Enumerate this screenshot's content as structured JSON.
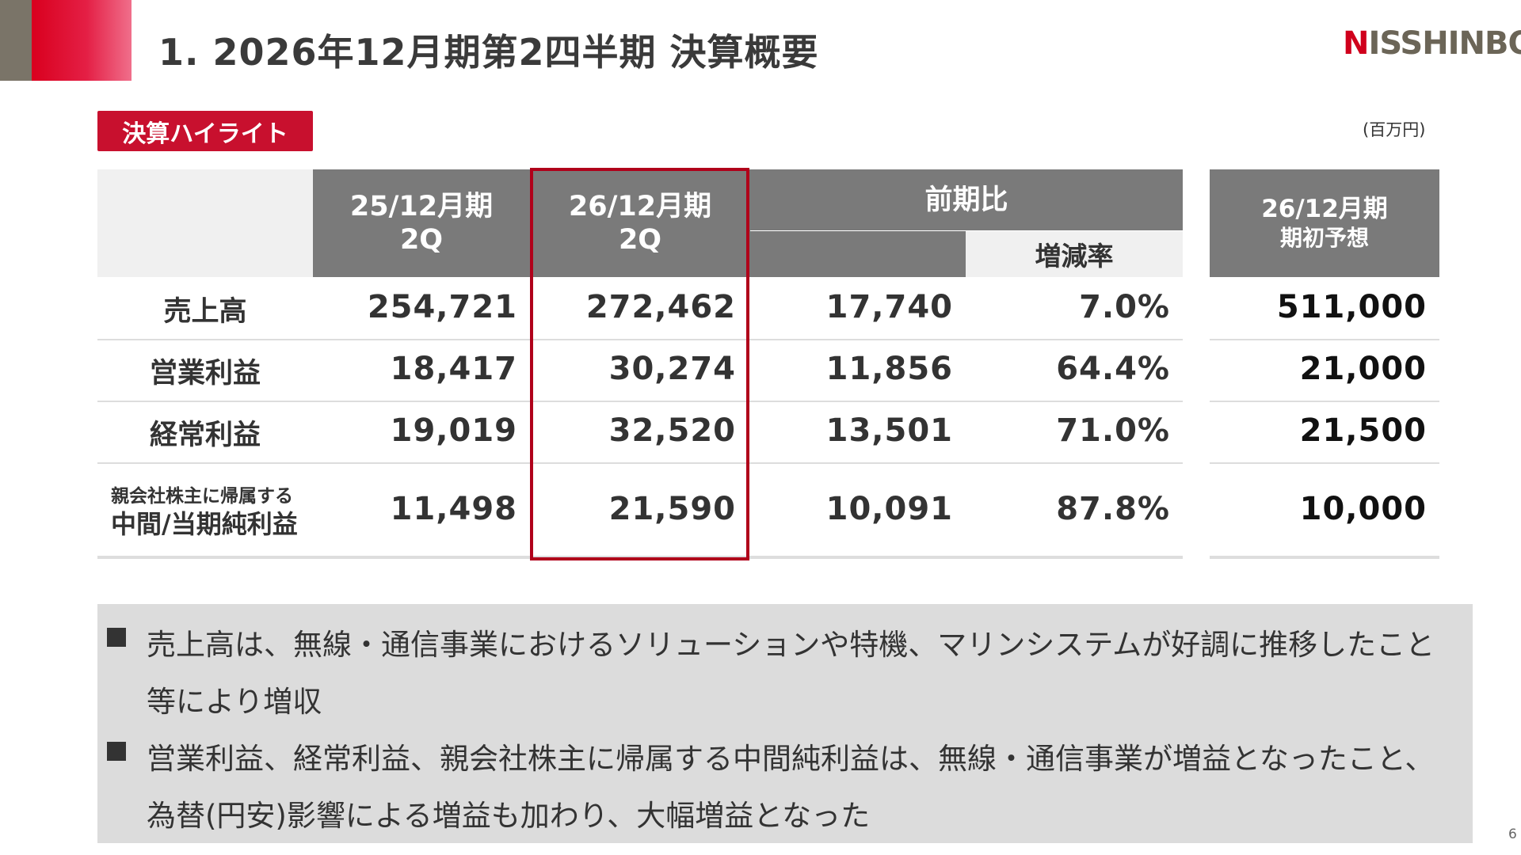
{
  "header": {
    "title": "1. 2026年12月期第2四半期 決算概要",
    "logo_text": "NISSHINBO",
    "logo_first_letter": "N",
    "logo_rest": "ISSHINBO"
  },
  "badge": "決算ハイライト",
  "unit": "(百万円)",
  "table": {
    "columns": {
      "prev": {
        "line1": "25/12月期",
        "line2": "2Q"
      },
      "curr": {
        "line1": "26/12月期",
        "line2": "2Q"
      },
      "yoy": {
        "label": "前期比",
        "rate": "増減率"
      },
      "forecast": {
        "line1": "26/12月期",
        "line2": "期初予想"
      }
    },
    "rows": [
      {
        "label": "売上高",
        "prev": "254,721",
        "curr": "272,462",
        "diff": "17,740",
        "rate": "7.0%",
        "forecast": "511,000"
      },
      {
        "label": "営業利益",
        "prev": "18,417",
        "curr": "30,274",
        "diff": "11,856",
        "rate": "64.4%",
        "forecast": "21,000"
      },
      {
        "label": "経常利益",
        "prev": "19,019",
        "curr": "32,520",
        "diff": "13,501",
        "rate": "71.0%",
        "forecast": "21,500"
      },
      {
        "label_small": "親会社株主に帰属する",
        "label": "中間/当期純利益",
        "prev": "11,498",
        "curr": "21,590",
        "diff": "10,091",
        "rate": "87.8%",
        "forecast": "10,000"
      }
    ]
  },
  "notes": [
    {
      "line1": "売上高は、無線・通信事業におけるソリューションや特機、マリンシステムが好調に推移したこと",
      "line2": "等により増収"
    },
    {
      "line1": "営業利益、経常利益、親会社株主に帰属する中間純利益は、無線・通信事業が増益となったこと、",
      "line2": "為替(円安)影響による増益も加わり、大幅増益となった"
    }
  ],
  "page_number": "6",
  "colors": {
    "accent": "#c8102e",
    "header_gray": "#7a7a7a",
    "notes_bg": "#dcdcdc",
    "highlight_border": "#b0001a"
  }
}
